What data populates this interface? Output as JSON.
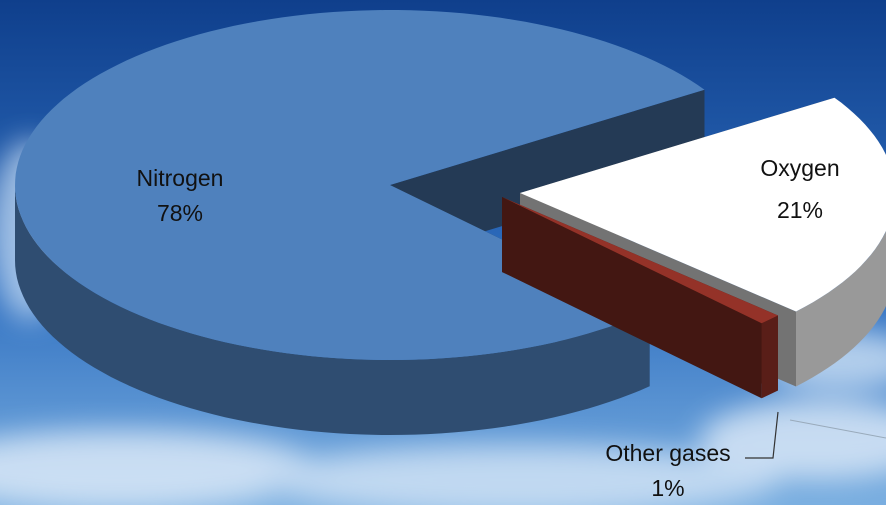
{
  "chart_data": {
    "type": "pie",
    "categories": [
      "Nitrogen",
      "Oxygen",
      "Other gases"
    ],
    "values": [
      78,
      21,
      1
    ],
    "value_labels": [
      "78%",
      "21%",
      "1%"
    ],
    "colors": [
      "#4f81bd",
      "#ffffff",
      "#943228"
    ]
  }
}
